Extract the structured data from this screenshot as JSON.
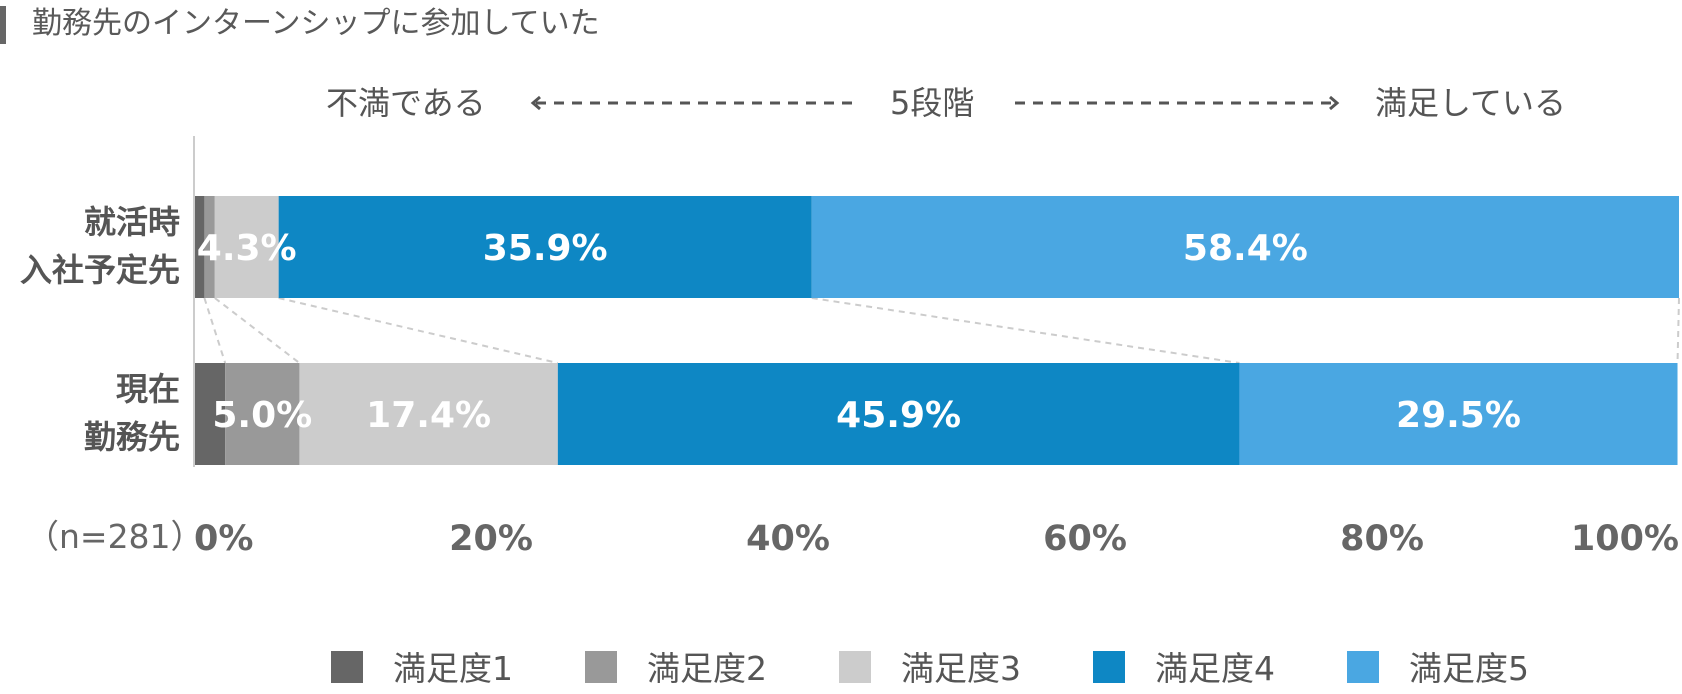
{
  "title": "勤務先のインターンシップに参加していた",
  "scale": {
    "left_label": "不満である",
    "center_label": "5段階",
    "right_label": "満足している"
  },
  "n_label": "（n=281）",
  "chart_data": {
    "type": "bar",
    "orientation": "horizontal-stacked-100",
    "categories": [
      [
        "就活時",
        "入社予定先"
      ],
      [
        "現在",
        "勤務先"
      ]
    ],
    "series": [
      {
        "name": "満足度1",
        "color": "#666666",
        "values": [
          0.7,
          2.1
        ]
      },
      {
        "name": "満足度2",
        "color": "#999999",
        "values": [
          0.7,
          5.0
        ]
      },
      {
        "name": "満足度3",
        "color": "#cccccc",
        "values": [
          4.3,
          17.4
        ]
      },
      {
        "name": "満足度4",
        "color": "#0e87c4",
        "values": [
          35.9,
          45.9
        ]
      },
      {
        "name": "満足度5",
        "color": "#4aa7e2",
        "values": [
          58.4,
          29.5
        ]
      }
    ],
    "data_labels": [
      [
        "",
        "",
        "4.3%",
        "35.9%",
        "58.4%"
      ],
      [
        "",
        "5.0%",
        "17.4%",
        "45.9%",
        "29.5%"
      ]
    ],
    "xlim": [
      0,
      100
    ],
    "xticks": [
      "0%",
      "20%",
      "40%",
      "60%",
      "80%",
      "100%"
    ],
    "legend_position": "bottom"
  }
}
